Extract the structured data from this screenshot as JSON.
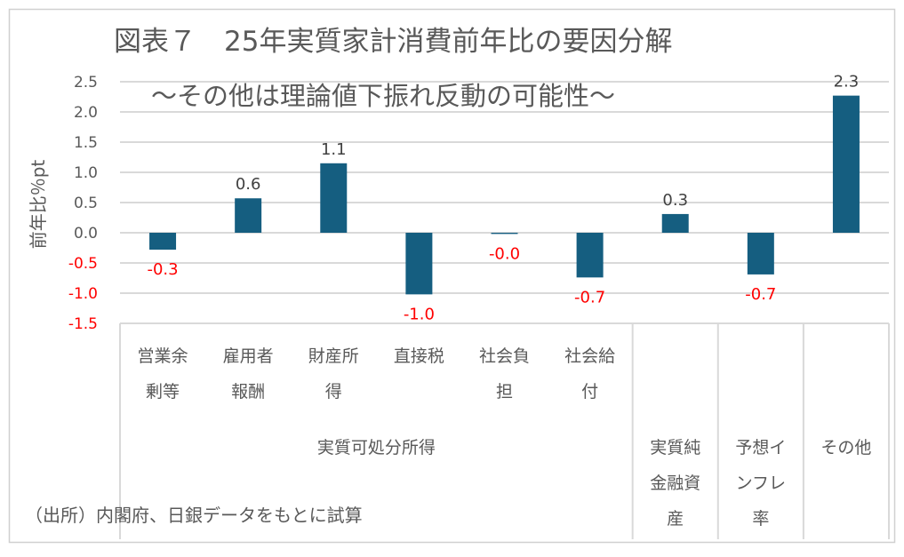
{
  "chart_data": {
    "type": "bar",
    "title": "図表７　25年実質家計消費前年比の要因分解",
    "subtitle": "～その他は理論値下振れ反動の可能性～",
    "ylabel": "前年比％pt",
    "xlabel": "",
    "ylim": [
      -1.5,
      2.5
    ],
    "yticks": [
      "2.5",
      "2.0",
      "1.5",
      "1.0",
      "0.5",
      "0.0",
      "-0.5",
      "-1.0",
      "-1.5"
    ],
    "grid": true,
    "categories": [
      [
        "営業余",
        "剰等"
      ],
      [
        "雇用者",
        "報酬"
      ],
      [
        "財産所",
        "得"
      ],
      [
        "直接税"
      ],
      [
        "社会負",
        "担"
      ],
      [
        "社会給",
        "付"
      ],
      [],
      [],
      []
    ],
    "groups": [
      {
        "label": [
          "実質可処分所得"
        ],
        "span": 6
      },
      {
        "label": [
          "実質純",
          "金融資",
          "産"
        ],
        "span": 1
      },
      {
        "label": [
          "予想イ",
          "ンフレ",
          "率"
        ],
        "span": 1
      },
      {
        "label": [
          "その他"
        ],
        "span": 1
      }
    ],
    "values": [
      -0.28,
      0.57,
      1.15,
      -1.02,
      -0.02,
      -0.74,
      0.31,
      -0.69,
      2.27
    ],
    "data_labels": [
      "-0.3",
      "0.6",
      "1.1",
      "-1.0",
      "-0.0",
      "-0.7",
      "0.3",
      "-0.7",
      "2.3"
    ],
    "bar_color": "#155e80",
    "negative_label_color": "#ff0000",
    "source": "（出所）内閣府、日銀データをもとに試算"
  }
}
